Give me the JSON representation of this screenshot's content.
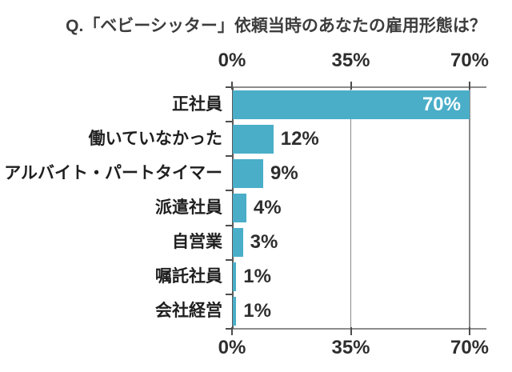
{
  "title": "Q.「ベビーシッター」依頼当時のあなたの雇用形態は？",
  "axis": {
    "ticks": [
      {
        "value": 0,
        "label": "0%"
      },
      {
        "value": 35,
        "label": "35%"
      },
      {
        "value": 70,
        "label": "70%"
      }
    ]
  },
  "chart_data": {
    "type": "bar",
    "orientation": "horizontal",
    "title": "Q.「ベビーシッター」依頼当時のあなたの雇用形態は？",
    "categories": [
      "正社員",
      "働いていなかった",
      "アルバイト・パートタイマー",
      "派遣社員",
      "自営業",
      "嘱託社員",
      "会社経営"
    ],
    "values": [
      70,
      12,
      9,
      4,
      3,
      1,
      1
    ],
    "value_labels": [
      "70%",
      "12%",
      "9%",
      "4%",
      "3%",
      "1%",
      "1%"
    ],
    "value_label_inside": [
      true,
      false,
      false,
      false,
      false,
      false,
      false
    ],
    "xlim": [
      0,
      70
    ],
    "x_ticks": [
      0,
      35,
      70
    ],
    "x_tick_labels": [
      "0%",
      "35%",
      "70%"
    ],
    "grid": "x-gridlines at 35% and 70%, axis line top and bottom",
    "legend": false,
    "bar_color": "#4AAEC8",
    "inside_value_color": "#FFFFFF",
    "value_text_color": "#2E2E2E",
    "category_text_color": "#1F1F1F",
    "title_text_color": "#3D3D3D",
    "axis_line_color": "#8C8C8C",
    "background_color": "#FFFFFF"
  }
}
